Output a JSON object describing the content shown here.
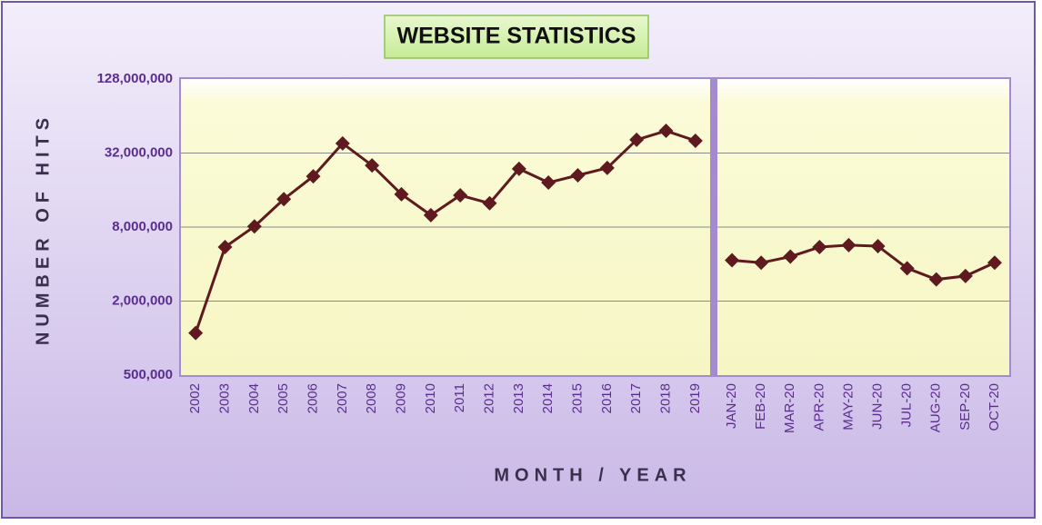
{
  "chart_data": {
    "type": "line",
    "title": "WEBSITE STATISTICS",
    "y_label": "NUMBER OF HITS",
    "x_label": "MONTH / YEAR",
    "log_scale": true,
    "grid": true,
    "color": "#5e1a1e",
    "ylim": [
      500000,
      128000000
    ],
    "yticks": [
      {
        "value": 500000,
        "label": "500,000"
      },
      {
        "value": 2000000,
        "label": "2,000,000"
      },
      {
        "value": 8000000,
        "label": "8,000,000"
      },
      {
        "value": 32000000,
        "label": "32,000,000"
      },
      {
        "value": 128000000,
        "label": "128,000,000"
      }
    ],
    "groups": [
      {
        "categories": [
          "2002",
          "2003",
          "2004",
          "2005",
          "2006",
          "2007",
          "2008",
          "2009",
          "2010",
          "2011",
          "2012",
          "2013",
          "2014",
          "2015",
          "2016",
          "2017",
          "2018",
          "2019"
        ],
        "values": [
          1100000,
          5500000,
          8100000,
          13500000,
          20700000,
          38300000,
          25400000,
          14800000,
          10000000,
          14500000,
          12500000,
          23800000,
          18400000,
          21100000,
          24200000,
          41000000,
          48500000,
          40300000
        ]
      },
      {
        "categories": [
          "JAN-20",
          "FEB-20",
          "MAR-20",
          "APR-20",
          "MAY-20",
          "JUN-20",
          "JUL-20",
          "AUG-20",
          "SEP-20",
          "OCT-20"
        ],
        "values": [
          4300000,
          4100000,
          4600000,
          5500000,
          5700000,
          5600000,
          3700000,
          3000000,
          3200000,
          4100000
        ]
      }
    ]
  }
}
